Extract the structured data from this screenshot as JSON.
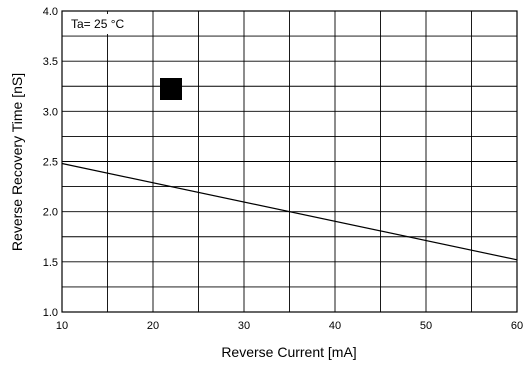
{
  "chart_data": {
    "type": "line",
    "title": "",
    "xlabel": "Reverse Current [mA]",
    "ylabel": "Reverse Recovery Time [nS]",
    "xlim": [
      10,
      60
    ],
    "ylim": [
      1.0,
      4.0
    ],
    "xticks": [
      "10",
      "20",
      "30",
      "40",
      "50",
      "60"
    ],
    "yticks": [
      "1.0",
      "1.5",
      "2.0",
      "2.5",
      "3.0",
      "3.5",
      "4.0"
    ],
    "grid": true,
    "annotation": "Ta= 25 °C",
    "series": [
      {
        "x": [
          10,
          60
        ],
        "y": [
          2.48,
          1.52
        ]
      }
    ]
  }
}
